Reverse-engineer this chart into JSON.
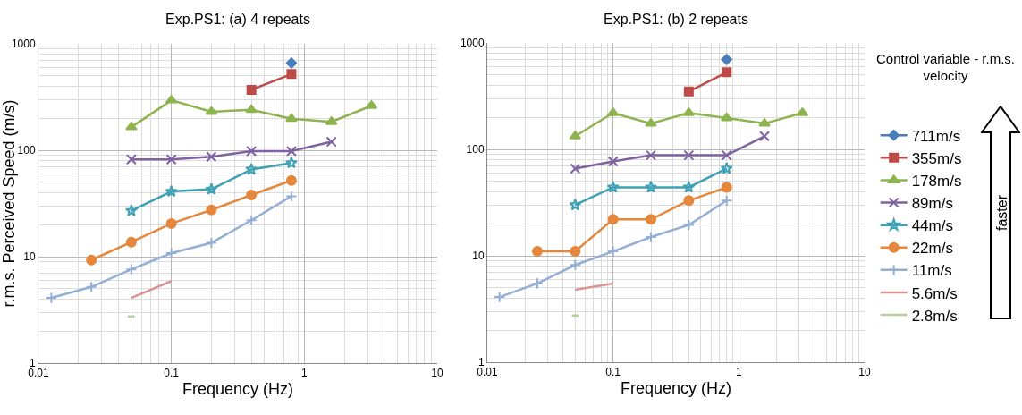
{
  "chart_data": [
    {
      "type": "line",
      "title": "Exp.PS1: (a) 4 repeats",
      "xlabel": "Frequency (Hz)",
      "ylabel": "r.m.s. Perceived Speed (m/s)",
      "log": "xy",
      "grid": true,
      "legend": false,
      "xlim": [
        0.01,
        10
      ],
      "xticks": [
        0.01,
        0.1,
        1,
        10
      ],
      "ylim": [
        1,
        1000
      ],
      "yticks": [
        1,
        10,
        100,
        1000
      ],
      "series": [
        {
          "color": "#4a7ebb",
          "marker": "diamond",
          "x": [
            0.8
          ],
          "values": [
            660
          ]
        },
        {
          "color": "#be4b48",
          "marker": "square",
          "x": [
            0.4,
            0.8
          ],
          "values": [
            370,
            520
          ]
        },
        {
          "color": "#8eb44f",
          "marker": "triangle",
          "x": [
            0.05,
            0.1,
            0.2,
            0.4,
            0.8,
            1.6,
            3.2
          ],
          "values": [
            165,
            295,
            230,
            240,
            198,
            185,
            262
          ]
        },
        {
          "color": "#7e62a1",
          "marker": "x",
          "x": [
            0.05,
            0.1,
            0.2,
            0.4,
            0.8,
            1.6
          ],
          "values": [
            82,
            82,
            87,
            98,
            98,
            120
          ]
        },
        {
          "color": "#3fa1b6",
          "marker": "star",
          "x": [
            0.05,
            0.1,
            0.2,
            0.4,
            0.8
          ],
          "values": [
            27,
            41,
            43,
            66,
            76
          ]
        },
        {
          "color": "#e5873c",
          "marker": "circle",
          "x": [
            0.025,
            0.05,
            0.1,
            0.2,
            0.4,
            0.8
          ],
          "values": [
            9.3,
            13.7,
            20.5,
            27.5,
            38,
            52
          ]
        },
        {
          "color": "#95aed6",
          "marker": "cross",
          "x": [
            0.0125,
            0.025,
            0.05,
            0.1,
            0.2,
            0.4,
            0.8
          ],
          "values": [
            4.1,
            5.2,
            7.6,
            10.8,
            13.5,
            22,
            37
          ]
        },
        {
          "color": "#d89594",
          "marker": "none",
          "x": [
            0.05,
            0.1
          ],
          "values": [
            4.1,
            5.9
          ]
        },
        {
          "color": "#b6d195",
          "marker": "none",
          "x": [
            0.047,
            0.053
          ],
          "values": [
            2.75,
            2.75
          ]
        }
      ]
    },
    {
      "type": "line",
      "title": "Exp.PS1: (b) 2 repeats",
      "xlabel": "Frequency (Hz)",
      "log": "xy",
      "grid": true,
      "legend": "right",
      "legend_title": "Control variable - r.m.s. velocity",
      "annotations": [
        "faster"
      ],
      "xlim": [
        0.01,
        10
      ],
      "xticks": [
        0.01,
        0.1,
        1,
        10
      ],
      "ylim": [
        1,
        1000
      ],
      "yticks": [
        1,
        10,
        100,
        1000
      ],
      "series": [
        {
          "name": "711m/s",
          "color": "#4a7ebb",
          "marker": "diamond",
          "x": [
            0.8
          ],
          "values": [
            700
          ]
        },
        {
          "name": "355m/s",
          "color": "#be4b48",
          "marker": "square",
          "x": [
            0.4,
            0.8
          ],
          "values": [
            350,
            530
          ]
        },
        {
          "name": "178m/s",
          "color": "#8eb44f",
          "marker": "triangle",
          "x": [
            0.05,
            0.1,
            0.2,
            0.4,
            0.8,
            1.6,
            3.2
          ],
          "values": [
            133,
            220,
            175,
            220,
            197,
            175,
            220
          ]
        },
        {
          "name": "89m/s",
          "color": "#7e62a1",
          "marker": "x",
          "x": [
            0.05,
            0.1,
            0.2,
            0.4,
            0.8,
            1.6
          ],
          "values": [
            66,
            77,
            88,
            88,
            88,
            133
          ]
        },
        {
          "name": "44m/s",
          "color": "#3fa1b6",
          "marker": "star",
          "x": [
            0.05,
            0.1,
            0.2,
            0.4,
            0.8
          ],
          "values": [
            30,
            44,
            44,
            44,
            66
          ]
        },
        {
          "name": "22m/s",
          "color": "#e5873c",
          "marker": "circle",
          "x": [
            0.025,
            0.05,
            0.1,
            0.2,
            0.4,
            0.8
          ],
          "values": [
            11,
            11,
            22,
            22,
            33,
            44
          ]
        },
        {
          "name": "11m/s",
          "color": "#95aed6",
          "marker": "cross",
          "x": [
            0.0125,
            0.025,
            0.05,
            0.1,
            0.2,
            0.4,
            0.8
          ],
          "values": [
            4.1,
            5.5,
            8.2,
            11,
            15,
            19.5,
            33
          ]
        },
        {
          "name": "5.6m/s",
          "color": "#d89594",
          "marker": "none",
          "x": [
            0.05,
            0.1
          ],
          "values": [
            4.8,
            5.5
          ]
        },
        {
          "name": "2.8m/s",
          "color": "#b6d195",
          "marker": "none",
          "x": [
            0.047,
            0.053
          ],
          "values": [
            2.75,
            2.75
          ]
        }
      ]
    }
  ]
}
